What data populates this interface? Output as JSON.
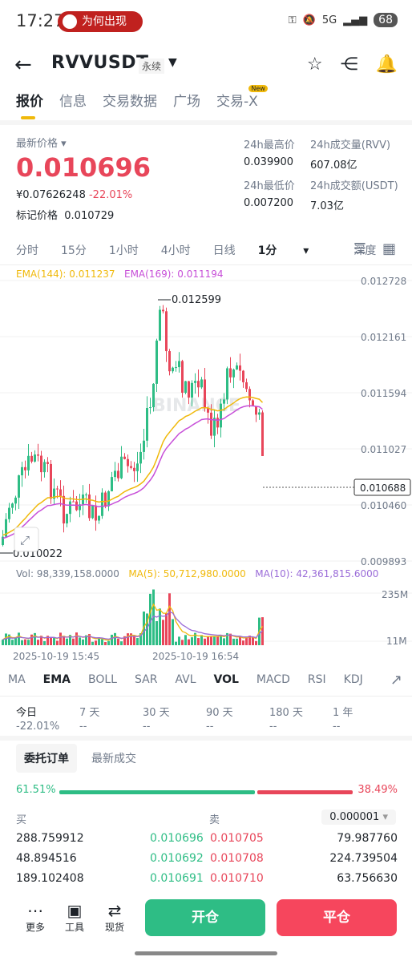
{
  "status_bar": {
    "time": "17:27",
    "notice": "为何出现",
    "battery": "68",
    "signal": "5G"
  },
  "nav": {
    "symbol": "RVVUSDT",
    "contract_type": "永续"
  },
  "tabs": [
    {
      "label": "报价",
      "active": true
    },
    {
      "label": "信息"
    },
    {
      "label": "交易数据"
    },
    {
      "label": "广场"
    },
    {
      "label": "交易-X",
      "badge": "New"
    }
  ],
  "price": {
    "latest_label": "最新价格",
    "last": "0.010696",
    "cny": "¥0.07626248",
    "change": "-22.01%",
    "mark_label": "标记价格",
    "mark": "0.010729"
  },
  "stats": {
    "high_label": "24h最高价",
    "high": "0.039900",
    "low_label": "24h最低价",
    "low": "0.007200",
    "vol_label": "24h成交量(RVV)",
    "vol": "607.08亿",
    "turnover_label": "24h成交额(USDT)",
    "turnover": "7.03亿"
  },
  "timeframes": [
    "分时",
    "15分",
    "1小时",
    "4小时",
    "日线",
    "1分",
    "深度"
  ],
  "active_timeframe": "1分",
  "ema_legend": {
    "ema144": "EMA(144): 0.011237",
    "ema169": "EMA(169): 0.011194"
  },
  "vol_legend": {
    "vol": "Vol: 98,339,158.0000",
    "ma5": "MA(5): 50,712,980.0000",
    "ma10": "MA(10): 42,361,815.6000"
  },
  "watermark": "BINANCE",
  "chart_data": {
    "type": "candlestick",
    "price_axis_ticks": [
      "0.012728",
      "0.012161",
      "0.011594",
      "0.011027",
      "0.010460",
      "0.009893"
    ],
    "high_marker": "0.012599",
    "low_marker": "0.010022",
    "last_price_tag": "0.010688",
    "volume_axis_ticks": [
      "235M",
      "11M"
    ],
    "time_ticks": [
      "2025-10-19 15:45",
      "2025-10-19 16:54"
    ],
    "colors": {
      "up": "#2ebd85",
      "down": "#e8465a",
      "ema144": "#f0b90b",
      "ema169": "#c74fd8",
      "ma5": "#f0b90b",
      "ma10": "#9a6bd8"
    }
  },
  "indicators": [
    "MA",
    "EMA",
    "BOLL",
    "SAR",
    "AVL",
    "VOL",
    "MACD",
    "RSI",
    "KDJ"
  ],
  "indicators_active": [
    "EMA",
    "VOL"
  ],
  "performance": [
    {
      "label": "今日",
      "value": "-22.01%"
    },
    {
      "label": "7 天",
      "value": "--"
    },
    {
      "label": "30 天",
      "value": "--"
    },
    {
      "label": "90 天",
      "value": "--"
    },
    {
      "label": "180 天",
      "value": "--"
    },
    {
      "label": "1 年",
      "value": "--"
    }
  ],
  "orderbook": {
    "tab_active": "委托订单",
    "tab_other": "最新成交",
    "buy_ratio": "61.51%",
    "sell_ratio": "38.49%",
    "buy_label": "买",
    "sell_label": "卖",
    "precision": "0.000001",
    "rows": [
      {
        "bid_qty": "288.759912",
        "bid": "0.010696",
        "ask": "0.010705",
        "ask_qty": "79.987760"
      },
      {
        "bid_qty": "48.894516",
        "bid": "0.010692",
        "ask": "0.010708",
        "ask_qty": "224.739504"
      },
      {
        "bid_qty": "189.102408",
        "bid": "0.010691",
        "ask": "0.010710",
        "ask_qty": "63.756630"
      }
    ]
  },
  "bottom": {
    "more": "更多",
    "tools": "工具",
    "spot": "现货",
    "open": "开仓",
    "close": "平仓"
  }
}
